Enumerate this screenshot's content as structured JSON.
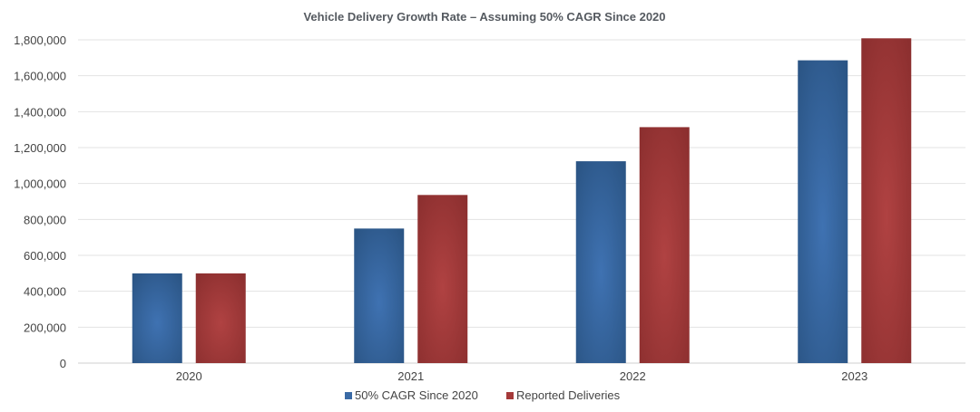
{
  "chart_data": {
    "type": "bar",
    "title": "Vehicle Delivery Growth Rate – Assuming 50% CAGR Since 2020",
    "xlabel": "",
    "ylabel": "",
    "categories": [
      "2020",
      "2021",
      "2022",
      "2023"
    ],
    "ylim": [
      0,
      1800000
    ],
    "yticks": [
      0,
      200000,
      400000,
      600000,
      800000,
      1000000,
      1200000,
      1400000,
      1600000,
      1800000
    ],
    "ytick_labels": [
      "0",
      "200,000",
      "400,000",
      "600,000",
      "800,000",
      "1,000,000",
      "1,200,000",
      "1,400,000",
      "1,600,000",
      "1,800,000"
    ],
    "grid": true,
    "legend_position": "bottom",
    "series": [
      {
        "name": "50% CAGR Since 2020",
        "color": "#3a6aa5",
        "values": [
          499550,
          749325,
          1123988,
          1685981
        ]
      },
      {
        "name": "Reported Deliveries",
        "color": "#a53a3a",
        "values": [
          499550,
          936172,
          1313851,
          1808581
        ]
      }
    ]
  }
}
